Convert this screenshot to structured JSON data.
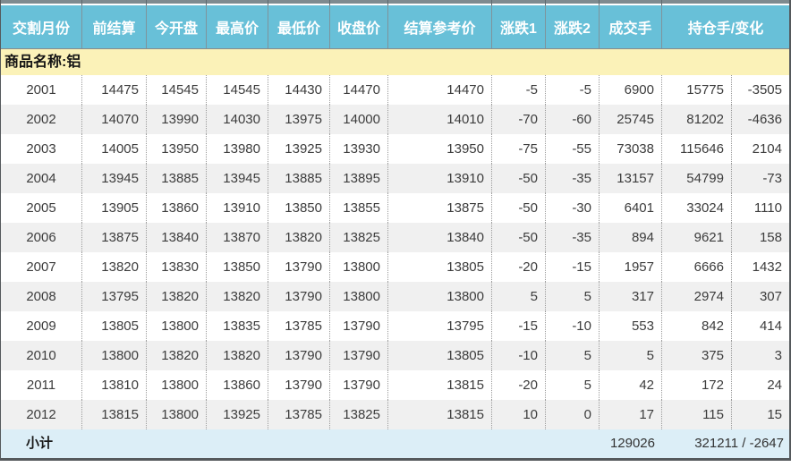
{
  "table": {
    "columns": [
      {
        "label": "交割月份"
      },
      {
        "label": "前结算"
      },
      {
        "label": "今开盘"
      },
      {
        "label": "最高价"
      },
      {
        "label": "最低价"
      },
      {
        "label": "收盘价"
      },
      {
        "label": "结算参考价"
      },
      {
        "label": "涨跌1"
      },
      {
        "label": "涨跌2"
      },
      {
        "label": "成交手"
      },
      {
        "label": "持仓手/变化"
      }
    ],
    "commodity_label": "商品名称:铝",
    "rows": [
      {
        "month": "2001",
        "values": [
          "14475",
          "14545",
          "14545",
          "14430",
          "14470",
          "14470",
          "-5",
          "-5",
          "6900",
          "15775",
          "-3505"
        ]
      },
      {
        "month": "2002",
        "values": [
          "14070",
          "13990",
          "14030",
          "13975",
          "14000",
          "14010",
          "-70",
          "-60",
          "25745",
          "81202",
          "-4636"
        ]
      },
      {
        "month": "2003",
        "values": [
          "14005",
          "13950",
          "13980",
          "13925",
          "13930",
          "13950",
          "-75",
          "-55",
          "73038",
          "115646",
          "2104"
        ]
      },
      {
        "month": "2004",
        "values": [
          "13945",
          "13885",
          "13945",
          "13885",
          "13895",
          "13910",
          "-50",
          "-35",
          "13157",
          "54799",
          "-73"
        ]
      },
      {
        "month": "2005",
        "values": [
          "13905",
          "13860",
          "13910",
          "13850",
          "13855",
          "13875",
          "-50",
          "-30",
          "6401",
          "33024",
          "1110"
        ]
      },
      {
        "month": "2006",
        "values": [
          "13875",
          "13840",
          "13870",
          "13820",
          "13825",
          "13840",
          "-50",
          "-35",
          "894",
          "9621",
          "158"
        ]
      },
      {
        "month": "2007",
        "values": [
          "13820",
          "13830",
          "13850",
          "13790",
          "13800",
          "13805",
          "-20",
          "-15",
          "1957",
          "6666",
          "1432"
        ]
      },
      {
        "month": "2008",
        "values": [
          "13795",
          "13820",
          "13820",
          "13790",
          "13800",
          "13800",
          "5",
          "5",
          "317",
          "2974",
          "307"
        ]
      },
      {
        "month": "2009",
        "values": [
          "13805",
          "13800",
          "13835",
          "13785",
          "13790",
          "13795",
          "-15",
          "-10",
          "553",
          "842",
          "414"
        ]
      },
      {
        "month": "2010",
        "values": [
          "13800",
          "13820",
          "13820",
          "13790",
          "13790",
          "13805",
          "-10",
          "5",
          "5",
          "375",
          "3"
        ]
      },
      {
        "month": "2011",
        "values": [
          "13810",
          "13800",
          "13860",
          "13790",
          "13790",
          "13815",
          "-20",
          "5",
          "42",
          "172",
          "24"
        ]
      },
      {
        "month": "2012",
        "values": [
          "13815",
          "13800",
          "13925",
          "13785",
          "13825",
          "13815",
          "10",
          "0",
          "17",
          "115",
          "15"
        ]
      }
    ],
    "summary": {
      "label": "小计",
      "volume_total": "129026",
      "oi_change_total": "321211 / -2647"
    }
  },
  "colors": {
    "header_bg": "#68C0D8",
    "commodity_band_bg": "#FBF2B8",
    "row_stripe_bg": "#F0F0F0",
    "summary_bg": "#DCEEF7",
    "outer_border": "#55595C"
  }
}
